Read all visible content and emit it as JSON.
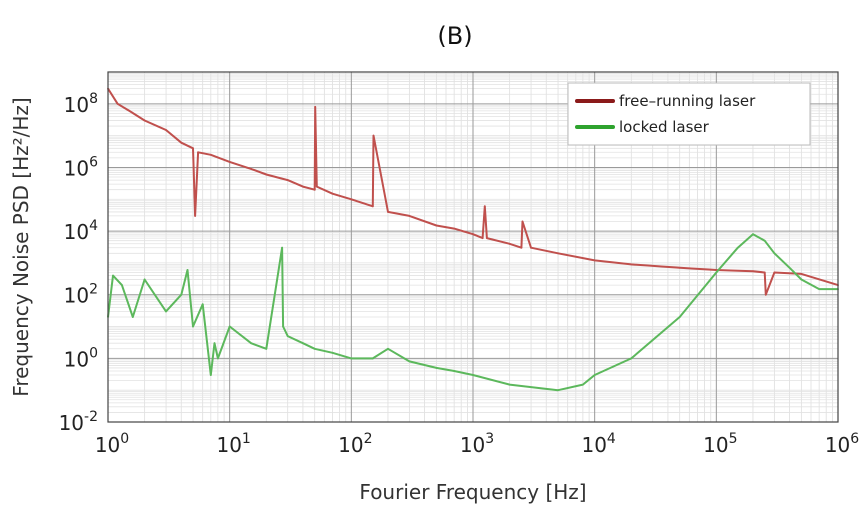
{
  "chart_data": {
    "type": "line",
    "title": "(B)",
    "xlabel": "Fourier Frequency [Hz]",
    "ylabel": "Frequency Noise PSD [Hz²/Hz]",
    "x_scale": "log",
    "y_scale": "log",
    "xlim": [
      1,
      1000000
    ],
    "ylim": [
      0.01,
      1000000000
    ],
    "x_ticks": [
      {
        "value": 1,
        "base": "10",
        "exp": "0"
      },
      {
        "value": 10,
        "base": "10",
        "exp": "1"
      },
      {
        "value": 100,
        "base": "10",
        "exp": "2"
      },
      {
        "value": 1000,
        "base": "10",
        "exp": "3"
      },
      {
        "value": 10000,
        "base": "10",
        "exp": "4"
      },
      {
        "value": 100000,
        "base": "10",
        "exp": "5"
      },
      {
        "value": 1000000,
        "base": "10",
        "exp": "6"
      }
    ],
    "y_ticks": [
      {
        "value": 0.01,
        "base": "10",
        "exp": "-2"
      },
      {
        "value": 1,
        "base": "10",
        "exp": "0"
      },
      {
        "value": 100,
        "base": "10",
        "exp": "2"
      },
      {
        "value": 10000,
        "base": "10",
        "exp": "4"
      },
      {
        "value": 1000000,
        "base": "10",
        "exp": "6"
      },
      {
        "value": 100000000,
        "base": "10",
        "exp": "8"
      }
    ],
    "grid": true,
    "legend_position": "top-right",
    "series": [
      {
        "name": "free–running laser",
        "color": "#c0504d",
        "legend_color": "#8b1a1a",
        "x": [
          1,
          1.2,
          1.5,
          2,
          3,
          4,
          5,
          5.2,
          5.5,
          7,
          10,
          15,
          20,
          30,
          40,
          50,
          50.5,
          52,
          70,
          100,
          150,
          152,
          200,
          300,
          500,
          700,
          1000,
          1200,
          1250,
          1300,
          2000,
          2500,
          2550,
          3000,
          5000,
          10000,
          20000,
          50000,
          100000,
          200000,
          250000,
          255000,
          300000,
          500000,
          1000000
        ],
        "y": [
          300000000,
          100000000,
          60000000,
          30000000,
          15000000,
          6000000,
          4000000,
          30000,
          3000000,
          2500000,
          1500000,
          900000,
          600000,
          400000,
          250000,
          200000,
          80000000,
          250000,
          150000,
          100000,
          60000,
          10000000,
          40000,
          30000,
          15000,
          12000,
          8000,
          6000,
          60000,
          6000,
          4000,
          3000,
          20000,
          3000,
          2000,
          1200,
          900,
          700,
          600,
          550,
          500,
          100,
          500,
          450,
          200
        ]
      },
      {
        "name": "locked laser",
        "color": "#5cb85c",
        "legend_color": "#2ea32e",
        "x": [
          1,
          1.1,
          1.3,
          1.6,
          2,
          3,
          4,
          4.5,
          5,
          6,
          7,
          7.5,
          8,
          10,
          15,
          20,
          27,
          27.5,
          30,
          40,
          50,
          70,
          100,
          150,
          200,
          300,
          500,
          700,
          1000,
          2000,
          5000,
          8000,
          10000,
          20000,
          50000,
          100000,
          150000,
          200000,
          250000,
          300000,
          400000,
          500000,
          700000,
          1000000
        ],
        "y": [
          20,
          400,
          200,
          20,
          300,
          30,
          100,
          600,
          10,
          50,
          0.3,
          3,
          1,
          10,
          3,
          2,
          3000,
          10,
          5,
          3,
          2,
          1.5,
          1,
          1,
          2,
          0.8,
          0.5,
          0.4,
          0.3,
          0.15,
          0.1,
          0.15,
          0.3,
          1,
          20,
          500,
          3000,
          8000,
          5000,
          2000,
          700,
          300,
          150,
          150
        ]
      }
    ]
  }
}
